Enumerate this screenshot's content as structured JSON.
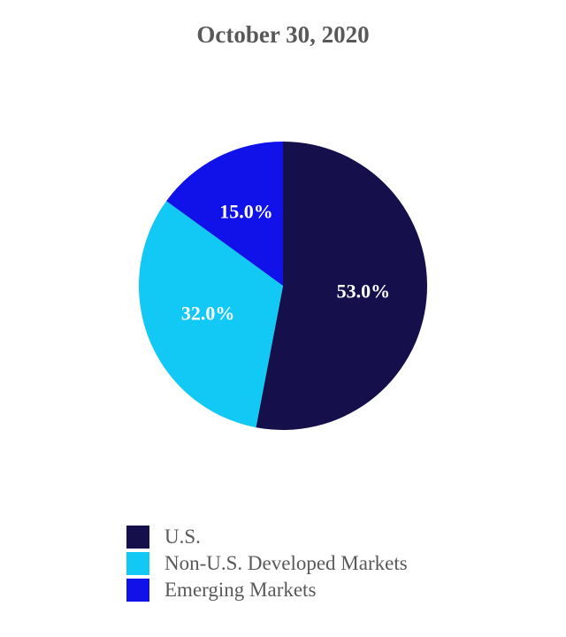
{
  "chart_data": {
    "type": "pie",
    "title": "October 30, 2020",
    "slices": [
      {
        "name": "U.S.",
        "value": 53.0,
        "label": "53.0%",
        "color": "#150f4b"
      },
      {
        "name": "Non-U.S. Developed Markets",
        "value": 32.0,
        "label": "32.0%",
        "color": "#12c8f5"
      },
      {
        "name": "Emerging Markets",
        "value": 15.0,
        "label": "15.0%",
        "color": "#1111ea"
      }
    ],
    "start": "12 o'clock",
    "direction": "clockwise",
    "legend_position": "bottom"
  }
}
